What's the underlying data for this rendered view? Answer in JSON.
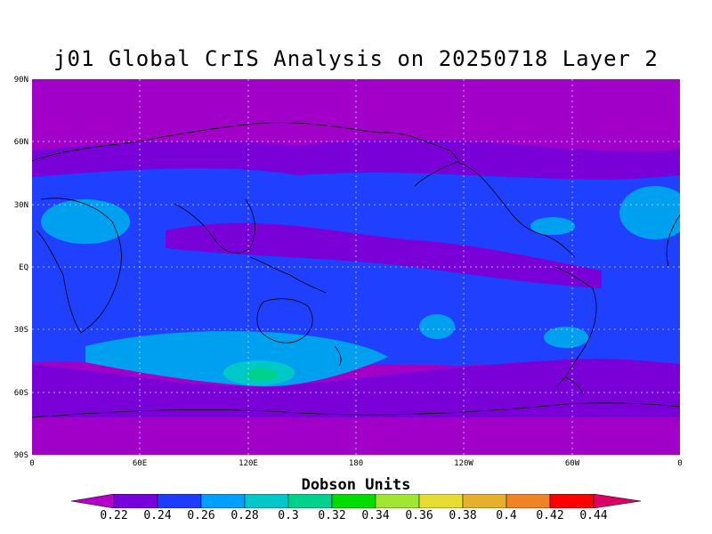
{
  "title": "j01 Global CrIS Analysis on 20250718 Layer 2",
  "lat_ticks": [
    "90N",
    "60N",
    "30N",
    "EQ",
    "30S",
    "60S",
    "90S"
  ],
  "lon_ticks": [
    "0",
    "60E",
    "120E",
    "180",
    "120W",
    "60W",
    "0"
  ],
  "colorbar": {
    "title": "Dobson Units",
    "labels": [
      "0.22",
      "0.24",
      "0.26",
      "0.28",
      "0.3",
      "0.32",
      "0.34",
      "0.36",
      "0.38",
      "0.4",
      "0.42",
      "0.44"
    ],
    "colors": [
      "#b400c8",
      "#7800dc",
      "#1e3cff",
      "#00a0ff",
      "#00c8c8",
      "#00d28c",
      "#00dc00",
      "#a0e632",
      "#e6dc32",
      "#e6af2d",
      "#f08228",
      "#fa0000",
      "#dc0064"
    ]
  },
  "map_colors": {
    "polar": "#a000c8",
    "low": "#7a00d8",
    "mid": "#2040ff",
    "high": "#00a0f0",
    "peak": "#00c8c8",
    "peak2": "#00d28c",
    "coast": "#000000"
  }
}
